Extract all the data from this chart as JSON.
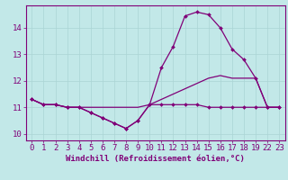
{
  "xlabel": "Windchill (Refroidissement éolien,°C)",
  "bg_color": "#c2e8e8",
  "grid_color": "#aad4d4",
  "line_color": "#800078",
  "spine_color": "#800078",
  "xlim": [
    -0.5,
    23.5
  ],
  "ylim": [
    9.75,
    14.85
  ],
  "yticks": [
    10,
    11,
    12,
    13,
    14
  ],
  "xtick_positions": [
    0,
    1,
    2,
    3,
    4,
    5,
    6,
    7,
    8,
    9,
    10,
    11,
    12,
    13,
    14,
    15,
    16,
    17,
    18,
    19,
    22,
    23
  ],
  "xtick_labels": [
    "0",
    "1",
    "2",
    "3",
    "4",
    "5",
    "6",
    "7",
    "8",
    "9",
    "10",
    "11",
    "12",
    "13",
    "14",
    "15",
    "16",
    "17",
    "18",
    "19",
    "22",
    "23"
  ],
  "series1_y": [
    11.3,
    11.1,
    11.1,
    11.0,
    11.0,
    10.8,
    10.6,
    10.4,
    10.2,
    10.5,
    11.1,
    11.1,
    11.1,
    11.1,
    11.1,
    11.0,
    11.0,
    11.0,
    11.0,
    11.0,
    11.0,
    11.0
  ],
  "series2_y": [
    11.3,
    11.1,
    11.1,
    11.0,
    11.0,
    10.8,
    10.6,
    10.4,
    10.2,
    10.5,
    11.1,
    12.5,
    13.3,
    14.45,
    14.6,
    14.5,
    14.0,
    13.2,
    12.8,
    12.1,
    11.0,
    11.0
  ],
  "series3_y": [
    11.3,
    11.1,
    11.1,
    11.0,
    11.0,
    11.0,
    11.0,
    11.0,
    11.0,
    11.0,
    11.1,
    11.3,
    11.5,
    11.7,
    11.9,
    12.1,
    12.2,
    12.1,
    12.1,
    12.1,
    11.0,
    11.0
  ],
  "tick_fontsize": 6.5,
  "xlabel_fontsize": 6.5
}
